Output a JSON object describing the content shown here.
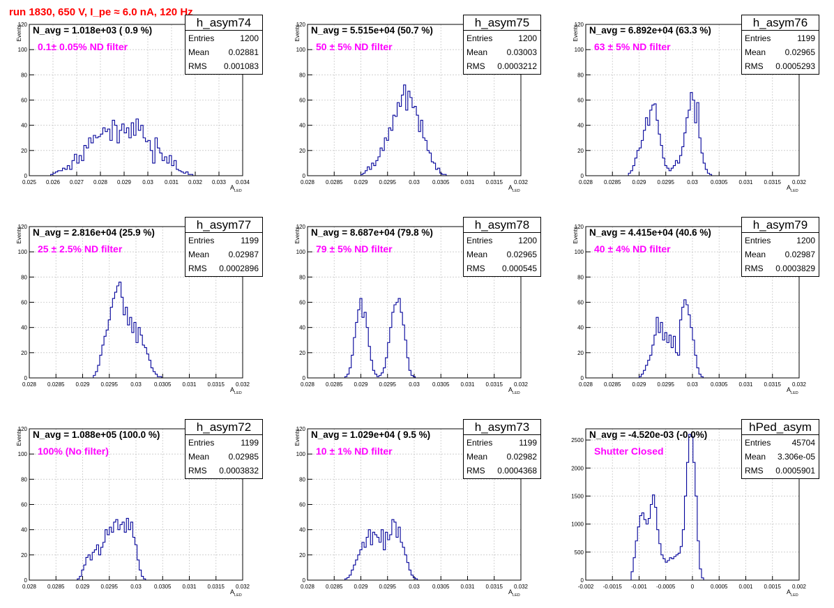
{
  "title": "run 1830,   650 V, I_pe ≈ 6.0 nA, 120 Hz",
  "colors": {
    "title": "#ff0000",
    "note": "#ff00ff",
    "hist": "#000099",
    "grid": "#c8c8c8"
  },
  "stats_labels": {
    "entries": "Entries",
    "mean": "Mean",
    "rms": "RMS"
  },
  "panels": [
    {
      "name": "h_asym74",
      "navg": "N_avg = 1.018e+03 ( 0.9 %)",
      "note": "0.1± 0.05% ND filter",
      "stats": {
        "entries": "1200",
        "mean": "0.02881",
        "rms": "0.001083"
      },
      "chart_data": {
        "type": "histogram",
        "title": "",
        "xlabel": "A",
        "xlabel_sub": "LED",
        "ylabel": "Events",
        "xlim": [
          0.025,
          0.034
        ],
        "ylim": [
          0,
          120
        ],
        "xticks": [
          "0.025",
          "0.026",
          "0.027",
          "0.028",
          "0.029",
          "0.03",
          "0.031",
          "0.032",
          "0.033",
          "0.034"
        ],
        "yticks": [
          "0",
          "20",
          "40",
          "60",
          "80",
          "100",
          "120"
        ],
        "bins": {
          "start": 0.0259,
          "width": 0.0001,
          "values": [
            1,
            2,
            3,
            4,
            4,
            6,
            5,
            8,
            5,
            12,
            17,
            10,
            16,
            12,
            24,
            22,
            30,
            26,
            32,
            30,
            31,
            33,
            38,
            35,
            37,
            28,
            44,
            40,
            26,
            36,
            41,
            34,
            38,
            30,
            42,
            32,
            45,
            36,
            40,
            30,
            27,
            28,
            20,
            10,
            30,
            22,
            18,
            12,
            15,
            10,
            16,
            8,
            12,
            5,
            4,
            3,
            2,
            3,
            1,
            1
          ]
        }
      }
    },
    {
      "name": "h_asym75",
      "navg": "N_avg = 5.515e+04 (50.7 %)",
      "note": "50 ± 5% ND filter",
      "stats": {
        "entries": "1200",
        "mean": "0.03003",
        "rms": "0.0003212"
      },
      "chart_data": {
        "type": "histogram",
        "title": "",
        "xlabel": "A",
        "xlabel_sub": "LED",
        "ylabel": "Events",
        "xlim": [
          0.028,
          0.032
        ],
        "ylim": [
          0,
          120
        ],
        "xticks": [
          "0.028",
          "0.0285",
          "0.029",
          "0.0295",
          "0.03",
          "0.0305",
          "0.031",
          "0.0315",
          "0.032"
        ],
        "yticks": [
          "0",
          "20",
          "40",
          "60",
          "80",
          "100",
          "120"
        ],
        "bins": {
          "start": 0.029,
          "width": 4e-05,
          "values": [
            1,
            2,
            4,
            7,
            5,
            10,
            8,
            12,
            15,
            22,
            20,
            30,
            28,
            38,
            36,
            48,
            47,
            58,
            55,
            64,
            72,
            52,
            67,
            62,
            54,
            55,
            48,
            35,
            44,
            30,
            28,
            20,
            18,
            11,
            10,
            5,
            6,
            2,
            1,
            1
          ]
        }
      }
    },
    {
      "name": "h_asym76",
      "navg": "N_avg = 6.892e+04 (63.3 %)",
      "note": "63 ± 5% ND filter",
      "stats": {
        "entries": "1199",
        "mean": "0.02965",
        "rms": "0.0005293"
      },
      "chart_data": {
        "type": "histogram",
        "title": "",
        "xlabel": "A",
        "xlabel_sub": "LED",
        "ylabel": "Events",
        "xlim": [
          0.028,
          0.032
        ],
        "ylim": [
          0,
          120
        ],
        "xticks": [
          "0.028",
          "0.0285",
          "0.029",
          "0.0295",
          "0.03",
          "0.0305",
          "0.031",
          "0.0315",
          "0.032"
        ],
        "yticks": [
          "0",
          "20",
          "40",
          "60",
          "80",
          "100",
          "120"
        ],
        "bins": {
          "start": 0.0288,
          "width": 4e-05,
          "values": [
            2,
            4,
            8,
            14,
            20,
            22,
            28,
            36,
            46,
            40,
            52,
            56,
            57,
            44,
            33,
            24,
            14,
            8,
            6,
            4,
            6,
            8,
            12,
            10,
            16,
            23,
            34,
            46,
            52,
            66,
            60,
            42,
            58,
            30,
            18,
            10,
            5,
            2,
            1
          ]
        }
      }
    },
    {
      "name": "h_asym77",
      "navg": "N_avg = 2.816e+04 (25.9 %)",
      "note": "25 ± 2.5% ND filter",
      "stats": {
        "entries": "1199",
        "mean": "0.02987",
        "rms": "0.0002896"
      },
      "chart_data": {
        "type": "histogram",
        "title": "",
        "xlabel": "A",
        "xlabel_sub": "LED",
        "ylabel": "Events",
        "xlim": [
          0.028,
          0.032
        ],
        "ylim": [
          0,
          120
        ],
        "xticks": [
          "0.028",
          "0.0285",
          "0.029",
          "0.0295",
          "0.03",
          "0.0305",
          "0.031",
          "0.0315",
          "0.032"
        ],
        "yticks": [
          "0",
          "20",
          "40",
          "60",
          "80",
          "100",
          "120"
        ],
        "bins": {
          "start": 0.0292,
          "width": 4e-05,
          "values": [
            2,
            5,
            10,
            18,
            26,
            33,
            38,
            46,
            56,
            63,
            68,
            73,
            76,
            64,
            50,
            56,
            42,
            48,
            36,
            44,
            28,
            40,
            34,
            26,
            24,
            19,
            14,
            8,
            5,
            3,
            1,
            1
          ]
        }
      }
    },
    {
      "name": "h_asym78",
      "navg": "N_avg = 8.687e+04 (79.8 %)",
      "note": "79 ± 5% ND filter",
      "stats": {
        "entries": "1200",
        "mean": "0.02965",
        "rms": "0.000545"
      },
      "chart_data": {
        "type": "histogram",
        "title": "",
        "xlabel": "A",
        "xlabel_sub": "LED",
        "ylabel": "Events",
        "xlim": [
          0.028,
          0.032
        ],
        "ylim": [
          0,
          120
        ],
        "xticks": [
          "0.028",
          "0.0285",
          "0.029",
          "0.0295",
          "0.03",
          "0.0305",
          "0.031",
          "0.0315",
          "0.032"
        ],
        "yticks": [
          "0",
          "20",
          "40",
          "60",
          "80",
          "100",
          "120"
        ],
        "bins": {
          "start": 0.0287,
          "width": 4e-05,
          "values": [
            1,
            3,
            8,
            18,
            32,
            44,
            54,
            63,
            48,
            52,
            40,
            25,
            14,
            6,
            3,
            1,
            2,
            4,
            8,
            16,
            28,
            40,
            52,
            58,
            60,
            63,
            52,
            42,
            30,
            16,
            6,
            2,
            1
          ]
        }
      }
    },
    {
      "name": "h_asym79",
      "navg": "N_avg = 4.415e+04 (40.6 %)",
      "note": "40 ± 4% ND filter",
      "stats": {
        "entries": "1200",
        "mean": "0.02987",
        "rms": "0.0003829"
      },
      "chart_data": {
        "type": "histogram",
        "title": "",
        "xlabel": "A",
        "xlabel_sub": "LED",
        "ylabel": "Events",
        "xlim": [
          0.028,
          0.032
        ],
        "ylim": [
          0,
          120
        ],
        "xticks": [
          "0.028",
          "0.0285",
          "0.029",
          "0.0295",
          "0.03",
          "0.0305",
          "0.031",
          "0.0315",
          "0.032"
        ],
        "yticks": [
          "0",
          "20",
          "40",
          "60",
          "80",
          "100",
          "120"
        ],
        "bins": {
          "start": 0.029,
          "width": 4e-05,
          "values": [
            1,
            3,
            6,
            10,
            14,
            18,
            26,
            34,
            48,
            36,
            44,
            30,
            36,
            28,
            34,
            24,
            33,
            20,
            18,
            46,
            56,
            62,
            58,
            50,
            40,
            30,
            18,
            8,
            3,
            1
          ]
        }
      }
    },
    {
      "name": "h_asym72",
      "navg": "N_avg = 1.088e+05 (100.0 %)",
      "note": "100% (No filter)",
      "stats": {
        "entries": "1199",
        "mean": "0.02985",
        "rms": "0.0003832"
      },
      "chart_data": {
        "type": "histogram",
        "title": "",
        "xlabel": "A",
        "xlabel_sub": "LED",
        "ylabel": "Events",
        "xlim": [
          0.028,
          0.032
        ],
        "ylim": [
          0,
          120
        ],
        "xticks": [
          "0.028",
          "0.0285",
          "0.029",
          "0.0295",
          "0.03",
          "0.0305",
          "0.031",
          "0.0315",
          "0.032"
        ],
        "yticks": [
          "0",
          "20",
          "40",
          "60",
          "80",
          "100",
          "120"
        ],
        "bins": {
          "start": 0.0289,
          "width": 4e-05,
          "values": [
            1,
            3,
            8,
            12,
            18,
            20,
            16,
            22,
            24,
            28,
            20,
            26,
            30,
            40,
            36,
            42,
            38,
            46,
            48,
            40,
            44,
            46,
            38,
            49,
            40,
            46,
            34,
            28,
            16,
            8,
            3,
            1
          ]
        }
      }
    },
    {
      "name": "h_asym73",
      "navg": "N_avg = 1.029e+04 ( 9.5 %)",
      "note": "10 ± 1% ND filter",
      "stats": {
        "entries": "1199",
        "mean": "0.02982",
        "rms": "0.0004368"
      },
      "chart_data": {
        "type": "histogram",
        "title": "",
        "xlabel": "A",
        "xlabel_sub": "LED",
        "ylabel": "Events",
        "xlim": [
          0.028,
          0.032
        ],
        "ylim": [
          0,
          120
        ],
        "xticks": [
          "0.028",
          "0.0285",
          "0.029",
          "0.0295",
          "0.03",
          "0.0305",
          "0.031",
          "0.0315",
          "0.032"
        ],
        "yticks": [
          "0",
          "20",
          "40",
          "60",
          "80",
          "100",
          "120"
        ],
        "bins": {
          "start": 0.0287,
          "width": 4e-05,
          "values": [
            1,
            2,
            4,
            8,
            12,
            16,
            20,
            24,
            30,
            26,
            34,
            40,
            28,
            38,
            36,
            34,
            30,
            40,
            24,
            38,
            32,
            36,
            48,
            46,
            34,
            42,
            30,
            26,
            20,
            14,
            8,
            4,
            2,
            1
          ]
        }
      }
    },
    {
      "name": "hPed_asym",
      "navg": "N_avg = -4.520e-03 (-0.0%)",
      "note": "Shutter Closed",
      "stats": {
        "entries": "45704",
        "mean": "3.306e-05",
        "rms": "0.0005901"
      },
      "chart_data": {
        "type": "histogram",
        "title": "",
        "xlabel": "A",
        "xlabel_sub": "LED",
        "ylabel": "",
        "xlim": [
          -0.002,
          0.002
        ],
        "ylim": [
          0,
          2700
        ],
        "xticks": [
          "-0.002",
          "-0.0015",
          "-0.001",
          "-0.0005",
          "0",
          "0.0005",
          "0.001",
          "0.0015",
          "0.002"
        ],
        "yticks": [
          "0",
          "500",
          "1000",
          "1500",
          "2000",
          "2500"
        ],
        "bins": {
          "start": -0.00115,
          "width": 4e-05,
          "values": [
            150,
            400,
            700,
            950,
            1150,
            1200,
            1080,
            1000,
            1100,
            1350,
            1520,
            1300,
            900,
            650,
            450,
            380,
            320,
            350,
            400,
            380,
            420,
            450,
            480,
            600,
            900,
            1500,
            2100,
            2600,
            2560,
            2100,
            1500,
            700,
            200,
            40
          ]
        }
      }
    }
  ]
}
